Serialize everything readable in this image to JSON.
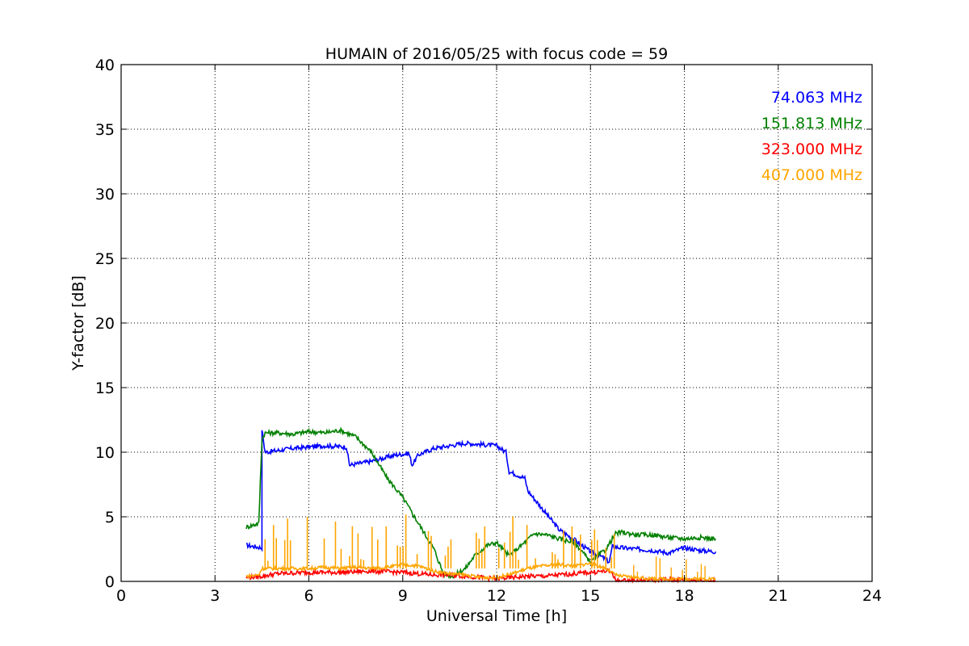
{
  "chart_data": {
    "type": "line",
    "title": "HUMAIN of 2016/05/25 with focus code = 59",
    "xlabel": "Universal Time [h]",
    "ylabel": "Y-factor [dB]",
    "xlim": [
      0,
      24
    ],
    "ylim": [
      0,
      40
    ],
    "xticks": [
      0,
      3,
      6,
      9,
      12,
      15,
      18,
      21,
      24
    ],
    "yticks": [
      0,
      5,
      10,
      15,
      20,
      25,
      30,
      35,
      40
    ],
    "grid": true,
    "legend_position": "top-right",
    "series": [
      {
        "name": "74.063 MHz",
        "color": "#0000ff",
        "x": [
          4.0,
          4.5,
          4.5,
          4.6,
          5.5,
          6.5,
          7.2,
          7.3,
          8.0,
          8.8,
          9.2,
          9.3,
          9.5,
          10.0,
          10.5,
          11.0,
          11.5,
          12.0,
          12.3,
          12.4,
          12.6,
          12.9,
          13.0,
          13.5,
          14.0,
          14.5,
          15.0,
          15.3,
          15.6,
          15.7,
          16.0,
          16.5,
          17.0,
          17.5,
          18.0,
          18.5,
          19.0
        ],
        "y": [
          2.8,
          2.6,
          11.8,
          10.0,
          10.3,
          10.5,
          10.4,
          9.0,
          9.3,
          9.8,
          9.9,
          9.0,
          9.8,
          10.3,
          10.5,
          10.7,
          10.6,
          10.5,
          10.0,
          8.5,
          8.3,
          8.0,
          7.0,
          5.5,
          4.0,
          3.2,
          2.3,
          2.0,
          1.5,
          2.7,
          2.6,
          2.5,
          2.4,
          2.2,
          2.6,
          2.4,
          2.3
        ]
      },
      {
        "name": "151.813 MHz",
        "color": "#008000",
        "x": [
          4.0,
          4.4,
          4.5,
          4.6,
          5.0,
          5.5,
          6.0,
          6.5,
          7.0,
          7.5,
          8.0,
          8.5,
          9.0,
          9.5,
          10.0,
          10.3,
          10.6,
          11.0,
          11.3,
          11.7,
          12.0,
          12.4,
          12.8,
          13.2,
          13.6,
          14.0,
          14.5,
          15.0,
          15.5,
          15.8,
          16.0,
          16.5,
          17.0,
          17.5,
          18.0,
          18.5,
          19.0
        ],
        "y": [
          4.2,
          4.5,
          11.0,
          11.5,
          11.5,
          11.4,
          11.6,
          11.5,
          11.7,
          11.2,
          10.0,
          8.0,
          6.5,
          4.5,
          2.5,
          0.6,
          0.4,
          1.0,
          2.0,
          2.8,
          3.0,
          2.0,
          2.8,
          3.7,
          3.6,
          3.3,
          3.0,
          1.5,
          2.5,
          3.7,
          3.8,
          3.6,
          3.6,
          3.4,
          3.3,
          3.4,
          3.3
        ]
      },
      {
        "name": "323.000 MHz",
        "color": "#ff0000",
        "x": [
          4.0,
          4.5,
          5.0,
          6.0,
          7.0,
          8.0,
          9.0,
          9.5,
          10.0,
          10.5,
          11.0,
          11.5,
          12.0,
          12.5,
          13.0,
          13.5,
          14.0,
          14.5,
          15.0,
          15.5,
          15.7,
          15.8,
          16.5,
          17.5,
          18.5,
          19.0
        ],
        "y": [
          0.3,
          0.4,
          0.6,
          0.7,
          0.7,
          0.8,
          0.7,
          0.6,
          0.5,
          0.5,
          0.4,
          0.3,
          0.2,
          0.3,
          0.4,
          0.4,
          0.5,
          0.6,
          0.7,
          0.8,
          0.7,
          0.05,
          0.05,
          0.15,
          0.1,
          0.05
        ]
      },
      {
        "name": "407.000 MHz",
        "color": "#ffa500",
        "x": [
          4.0,
          4.4,
          4.5,
          5.0,
          5.5,
          6.0,
          6.5,
          7.0,
          7.5,
          8.0,
          8.5,
          9.0,
          9.5,
          10.0,
          10.5,
          11.0,
          11.5,
          12.0,
          12.5,
          13.0,
          13.5,
          14.0,
          14.5,
          15.0,
          15.5,
          15.8,
          16.0,
          16.5,
          17.0,
          17.5,
          18.0,
          18.5,
          19.0
        ],
        "y": [
          0.4,
          0.5,
          1.0,
          1.0,
          1.0,
          1.0,
          1.1,
          1.0,
          1.1,
          1.0,
          1.1,
          1.3,
          1.2,
          0.8,
          0.6,
          0.5,
          0.3,
          0.3,
          0.6,
          1.0,
          1.2,
          1.3,
          1.2,
          1.4,
          1.0,
          0.5,
          0.4,
          0.3,
          0.2,
          0.2,
          0.2,
          0.2,
          0.2
        ]
      }
    ]
  }
}
